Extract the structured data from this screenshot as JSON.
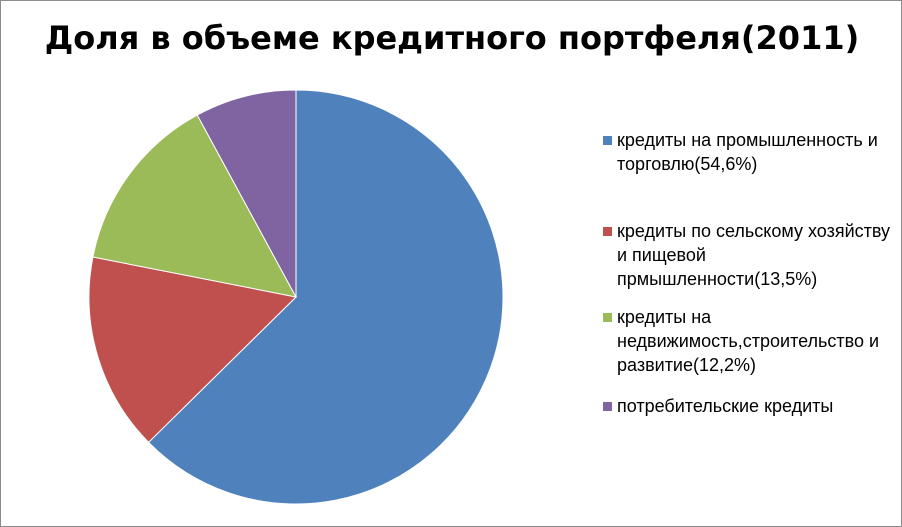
{
  "chart_data": {
    "type": "pie",
    "title": "Доля в объеме кредитного портфеля(2011)",
    "categories": [
      "кредиты на промышленность и торговлю(54,6%)",
      "кредиты по  сельскому хозяйству и пищевой прмышленности(13,5%)",
      "кредиты на недвижимость,строительство и развитие(12,2%)",
      "потребительские кредиты"
    ],
    "values": [
      54.6,
      13.5,
      12.2,
      6.9
    ],
    "colors": [
      "#4f81bd",
      "#c0504d",
      "#9bbb59",
      "#8064a2"
    ],
    "legend_position": "right"
  }
}
